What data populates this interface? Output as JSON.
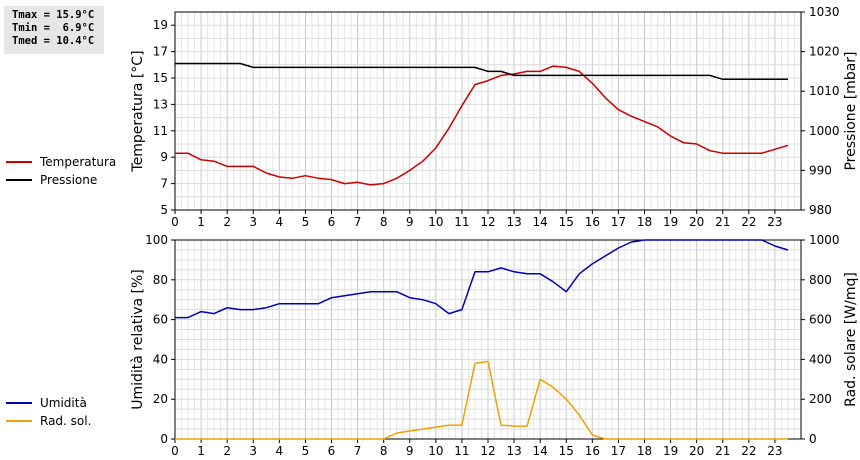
{
  "stats": {
    "tmax": "Tmax = 15.9°C",
    "tmin": "Tmin =  6.9°C",
    "tmed": "Tmed = 10.4°C"
  },
  "legend_top": [
    {
      "label": "Temperatura",
      "color": "#cc0000"
    },
    {
      "label": "Pressione",
      "color": "#000000"
    }
  ],
  "legend_bottom": [
    {
      "label": "Umidità",
      "color": "#0000bb"
    },
    {
      "label": "Rad. sol.",
      "color": "#f0a000"
    }
  ],
  "chart_data": [
    {
      "type": "line",
      "ylabel": "Temperatura [°C]",
      "y2label": "Pressione [mbar]",
      "xlim": [
        0,
        24
      ],
      "x_ticks": [
        0,
        1,
        2,
        3,
        4,
        5,
        6,
        7,
        8,
        9,
        10,
        11,
        12,
        13,
        14,
        15,
        16,
        17,
        18,
        19,
        20,
        21,
        22,
        23
      ],
      "ylim": [
        5,
        20
      ],
      "y_ticks": [
        5,
        7,
        9,
        11,
        13,
        15,
        17,
        19
      ],
      "y2lim": [
        980,
        1030
      ],
      "y2_ticks": [
        980,
        990,
        1000,
        1010,
        1020,
        1030
      ],
      "grid": true,
      "series": [
        {
          "name": "Temperatura",
          "axis": "left",
          "color": "#cc0000",
          "x": [
            0,
            0.5,
            1,
            1.5,
            2,
            2.5,
            3,
            3.5,
            4,
            4.5,
            5,
            5.5,
            6,
            6.5,
            7,
            7.5,
            8,
            8.5,
            9,
            9.5,
            10,
            10.5,
            11,
            11.5,
            12,
            12.5,
            13,
            13.5,
            14,
            14.5,
            15,
            15.5,
            16,
            16.5,
            17,
            17.5,
            18,
            18.5,
            19,
            19.5,
            20,
            20.5,
            21,
            21.5,
            22,
            22.5,
            23,
            23.5
          ],
          "values": [
            9.3,
            9.3,
            8.8,
            8.7,
            8.3,
            8.3,
            8.3,
            7.8,
            7.5,
            7.4,
            7.6,
            7.4,
            7.3,
            7.0,
            7.1,
            6.9,
            7.0,
            7.4,
            8.0,
            8.7,
            9.7,
            11.2,
            12.9,
            14.5,
            14.8,
            15.2,
            15.3,
            15.5,
            15.5,
            15.9,
            15.8,
            15.5,
            14.6,
            13.5,
            12.6,
            12.1,
            11.7,
            11.3,
            10.6,
            10.1,
            10.0,
            9.5,
            9.3,
            9.3,
            9.3,
            9.3,
            9.6,
            9.9
          ]
        },
        {
          "name": "Pressione",
          "axis": "right",
          "color": "#000000",
          "x": [
            0,
            0.5,
            1,
            1.5,
            2,
            2.5,
            3,
            3.5,
            4,
            4.5,
            5,
            5.5,
            6,
            6.5,
            7,
            7.5,
            8,
            8.5,
            9,
            9.5,
            10,
            10.5,
            11,
            11.5,
            12,
            12.5,
            13,
            13.5,
            14,
            14.5,
            15,
            15.5,
            16,
            16.5,
            17,
            17.5,
            18,
            18.5,
            19,
            19.5,
            20,
            20.5,
            21,
            21.5,
            22,
            22.5,
            23,
            23.5
          ],
          "values": [
            1017,
            1017,
            1017,
            1017,
            1017,
            1017,
            1016,
            1016,
            1016,
            1016,
            1016,
            1016,
            1016,
            1016,
            1016,
            1016,
            1016,
            1016,
            1016,
            1016,
            1016,
            1016,
            1016,
            1016,
            1015,
            1015,
            1014,
            1014,
            1014,
            1014,
            1014,
            1014,
            1014,
            1014,
            1014,
            1014,
            1014,
            1014,
            1014,
            1014,
            1014,
            1014,
            1013,
            1013,
            1013,
            1013,
            1013,
            1013
          ]
        }
      ]
    },
    {
      "type": "line",
      "ylabel": "Umidità relativa [%]",
      "y2label": "Rad. solare [W/mq]",
      "xlim": [
        0,
        24
      ],
      "x_ticks": [
        0,
        1,
        2,
        3,
        4,
        5,
        6,
        7,
        8,
        9,
        10,
        11,
        12,
        13,
        14,
        15,
        16,
        17,
        18,
        19,
        20,
        21,
        22,
        23
      ],
      "ylim": [
        0,
        100
      ],
      "y_ticks": [
        0,
        20,
        40,
        60,
        80,
        100
      ],
      "y2lim": [
        0,
        1000
      ],
      "y2_ticks": [
        0,
        200,
        400,
        600,
        800,
        1000
      ],
      "grid": true,
      "series": [
        {
          "name": "Umidità",
          "axis": "left",
          "color": "#0000bb",
          "x": [
            0,
            0.5,
            1,
            1.5,
            2,
            2.5,
            3,
            3.5,
            4,
            4.5,
            5,
            5.5,
            6,
            6.5,
            7,
            7.5,
            8,
            8.5,
            9,
            9.5,
            10,
            10.5,
            11,
            11.5,
            12,
            12.5,
            13,
            13.5,
            14,
            14.5,
            15,
            15.5,
            16,
            16.5,
            17,
            17.5,
            18,
            18.5,
            19,
            19.5,
            20,
            20.5,
            21,
            21.5,
            22,
            22.5,
            23,
            23.5
          ],
          "values": [
            61,
            61,
            64,
            63,
            66,
            65,
            65,
            66,
            68,
            68,
            68,
            68,
            71,
            72,
            73,
            74,
            74,
            74,
            71,
            70,
            68,
            63,
            65,
            84,
            84,
            86,
            84,
            83,
            83,
            79,
            74,
            83,
            88,
            92,
            96,
            99,
            100,
            100,
            100,
            100,
            100,
            100,
            100,
            100,
            100,
            100,
            97,
            95
          ]
        },
        {
          "name": "Rad. sol.",
          "axis": "right",
          "color": "#f0a000",
          "x": [
            0,
            0.5,
            1,
            1.5,
            2,
            2.5,
            3,
            3.5,
            4,
            4.5,
            5,
            5.5,
            6,
            6.5,
            7,
            7.5,
            8,
            8.5,
            9,
            9.5,
            10,
            10.5,
            11,
            11.5,
            12,
            12.5,
            13,
            13.5,
            14,
            14.5,
            15,
            15.5,
            16,
            16.5,
            17,
            17.5,
            18,
            18.5,
            19,
            19.5,
            20,
            20.5,
            21,
            21.5,
            22,
            22.5,
            23,
            23.5
          ],
          "values": [
            0,
            0,
            0,
            0,
            0,
            0,
            0,
            0,
            0,
            0,
            0,
            0,
            0,
            0,
            0,
            0,
            0,
            30,
            40,
            50,
            60,
            70,
            70,
            380,
            390,
            70,
            65,
            65,
            300,
            260,
            200,
            120,
            20,
            0,
            0,
            0,
            0,
            0,
            0,
            0,
            0,
            0,
            0,
            0,
            0,
            0,
            0,
            0
          ]
        }
      ]
    }
  ]
}
